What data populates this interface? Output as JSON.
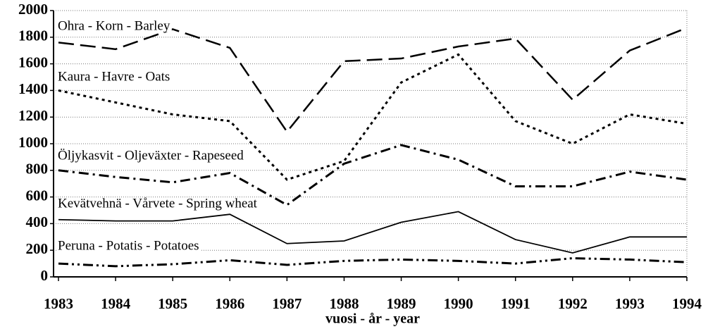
{
  "chart_data": {
    "type": "line",
    "x_label": "vuosi - år - year",
    "x": [
      1983,
      1984,
      1985,
      1986,
      1987,
      1988,
      1989,
      1990,
      1991,
      1992,
      1993,
      1994
    ],
    "xlim": [
      1983,
      1994
    ],
    "xticks": [
      1983,
      1984,
      1985,
      1986,
      1987,
      1988,
      1989,
      1990,
      1991,
      1992,
      1993,
      1994
    ],
    "ylim": [
      0,
      2000
    ],
    "yticks": [
      0,
      200,
      400,
      600,
      800,
      1000,
      1200,
      1400,
      1600,
      1800,
      2000
    ],
    "grid": true,
    "series": [
      {
        "name": "Ohra - Korn - Barley",
        "color": "#000000",
        "style": "long-dash",
        "values": [
          1760,
          1710,
          1860,
          1720,
          1090,
          1620,
          1640,
          1730,
          1790,
          1330,
          1700,
          1870
        ]
      },
      {
        "name": "Kaura - Havre - Oats",
        "color": "#000000",
        "style": "dotted",
        "values": [
          1400,
          1310,
          1220,
          1170,
          730,
          870,
          1460,
          1670,
          1170,
          1000,
          1220,
          1150
        ]
      },
      {
        "name": "Öljykasvit - Oljeväxter - Rapeseed",
        "color": "#000000",
        "style": "dash-dot",
        "values": [
          800,
          750,
          710,
          780,
          540,
          850,
          990,
          880,
          680,
          680,
          790,
          730
        ]
      },
      {
        "name": "Kevätvehnä - Vårvete - Spring wheat",
        "color": "#000000",
        "style": "solid",
        "values": [
          430,
          420,
          420,
          470,
          250,
          270,
          410,
          490,
          280,
          180,
          300,
          300
        ]
      },
      {
        "name": "Peruna - Potatis - Potatoes",
        "color": "#000000",
        "style": "dash-dot-dot",
        "values": [
          100,
          80,
          95,
          125,
          90,
          120,
          130,
          120,
          100,
          140,
          130,
          110
        ]
      }
    ]
  }
}
